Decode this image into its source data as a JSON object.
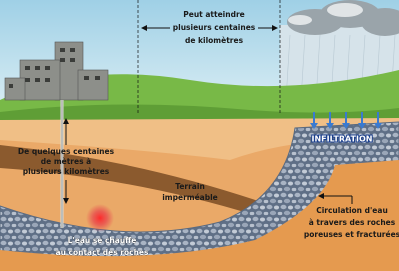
{
  "labels": {
    "distance": [
      "Peut atteindre",
      "plusieurs centaines",
      "de kilomètres"
    ],
    "depth": [
      "De quelques centaines",
      "de mètres à",
      "plusieurs kilomètres"
    ],
    "impermeable": [
      "Terrain",
      "imperméable"
    ],
    "infiltration": "INFILTRATION",
    "heating": [
      "L'eau se chauffe",
      "au contact des roches"
    ],
    "circulation": [
      "Circulation d'eau",
      "à travers des roches",
      "poreuses et fracturées"
    ]
  }
}
